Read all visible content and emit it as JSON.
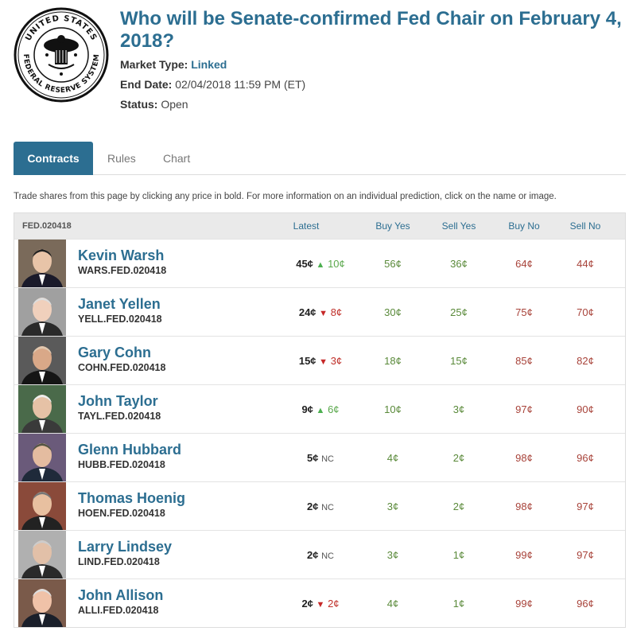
{
  "market": {
    "title": "Who will be Senate-confirmed Fed Chair on February 4, 2018?",
    "type_label": "Market Type:",
    "type_value": "Linked",
    "end_label": "End Date:",
    "end_value": "02/04/2018 11:59 PM (ET)",
    "status_label": "Status:",
    "status_value": "Open",
    "seal_text_top": "UNITED STATES",
    "seal_text_bottom": "FEDERAL RESERVE SYSTEM"
  },
  "tabs": [
    {
      "label": "Contracts"
    },
    {
      "label": "Rules"
    },
    {
      "label": "Chart"
    }
  ],
  "info": "Trade shares from this page by clicking any price in bold. For more information on an individual prediction, click on the name or image.",
  "table": {
    "market_id": "FED.020418",
    "headers": {
      "latest": "Latest",
      "buy_yes": "Buy Yes",
      "sell_yes": "Sell Yes",
      "buy_no": "Buy No",
      "sell_no": "Sell No"
    },
    "rows": [
      {
        "name": "Kevin Warsh",
        "code": "WARS.FED.020418",
        "latest": "45¢",
        "dir": "up",
        "change": "10¢",
        "buy_yes": "56¢",
        "sell_yes": "36¢",
        "buy_no": "64¢",
        "sell_no": "44¢"
      },
      {
        "name": "Janet Yellen",
        "code": "YELL.FED.020418",
        "latest": "24¢",
        "dir": "down",
        "change": "8¢",
        "buy_yes": "30¢",
        "sell_yes": "25¢",
        "buy_no": "75¢",
        "sell_no": "70¢"
      },
      {
        "name": "Gary Cohn",
        "code": "COHN.FED.020418",
        "latest": "15¢",
        "dir": "down",
        "change": "3¢",
        "buy_yes": "18¢",
        "sell_yes": "15¢",
        "buy_no": "85¢",
        "sell_no": "82¢"
      },
      {
        "name": "John Taylor",
        "code": "TAYL.FED.020418",
        "latest": "9¢",
        "dir": "up",
        "change": "6¢",
        "buy_yes": "10¢",
        "sell_yes": "3¢",
        "buy_no": "97¢",
        "sell_no": "90¢"
      },
      {
        "name": "Glenn Hubbard",
        "code": "HUBB.FED.020418",
        "latest": "5¢",
        "dir": "nc",
        "change": "NC",
        "buy_yes": "4¢",
        "sell_yes": "2¢",
        "buy_no": "98¢",
        "sell_no": "96¢"
      },
      {
        "name": "Thomas Hoenig",
        "code": "HOEN.FED.020418",
        "latest": "2¢",
        "dir": "nc",
        "change": "NC",
        "buy_yes": "3¢",
        "sell_yes": "2¢",
        "buy_no": "98¢",
        "sell_no": "97¢"
      },
      {
        "name": "Larry Lindsey",
        "code": "LIND.FED.020418",
        "latest": "2¢",
        "dir": "nc",
        "change": "NC",
        "buy_yes": "3¢",
        "sell_yes": "1¢",
        "buy_no": "99¢",
        "sell_no": "97¢"
      },
      {
        "name": "John Allison",
        "code": "ALLI.FED.020418",
        "latest": "2¢",
        "dir": "down",
        "change": "2¢",
        "buy_yes": "4¢",
        "sell_yes": "1¢",
        "buy_no": "99¢",
        "sell_no": "96¢"
      }
    ]
  },
  "colors": {
    "accent": "#2c6e91",
    "yes": "#5a8a3a",
    "no": "#a8433a",
    "up": "#4caf50",
    "down": "#c62828"
  }
}
